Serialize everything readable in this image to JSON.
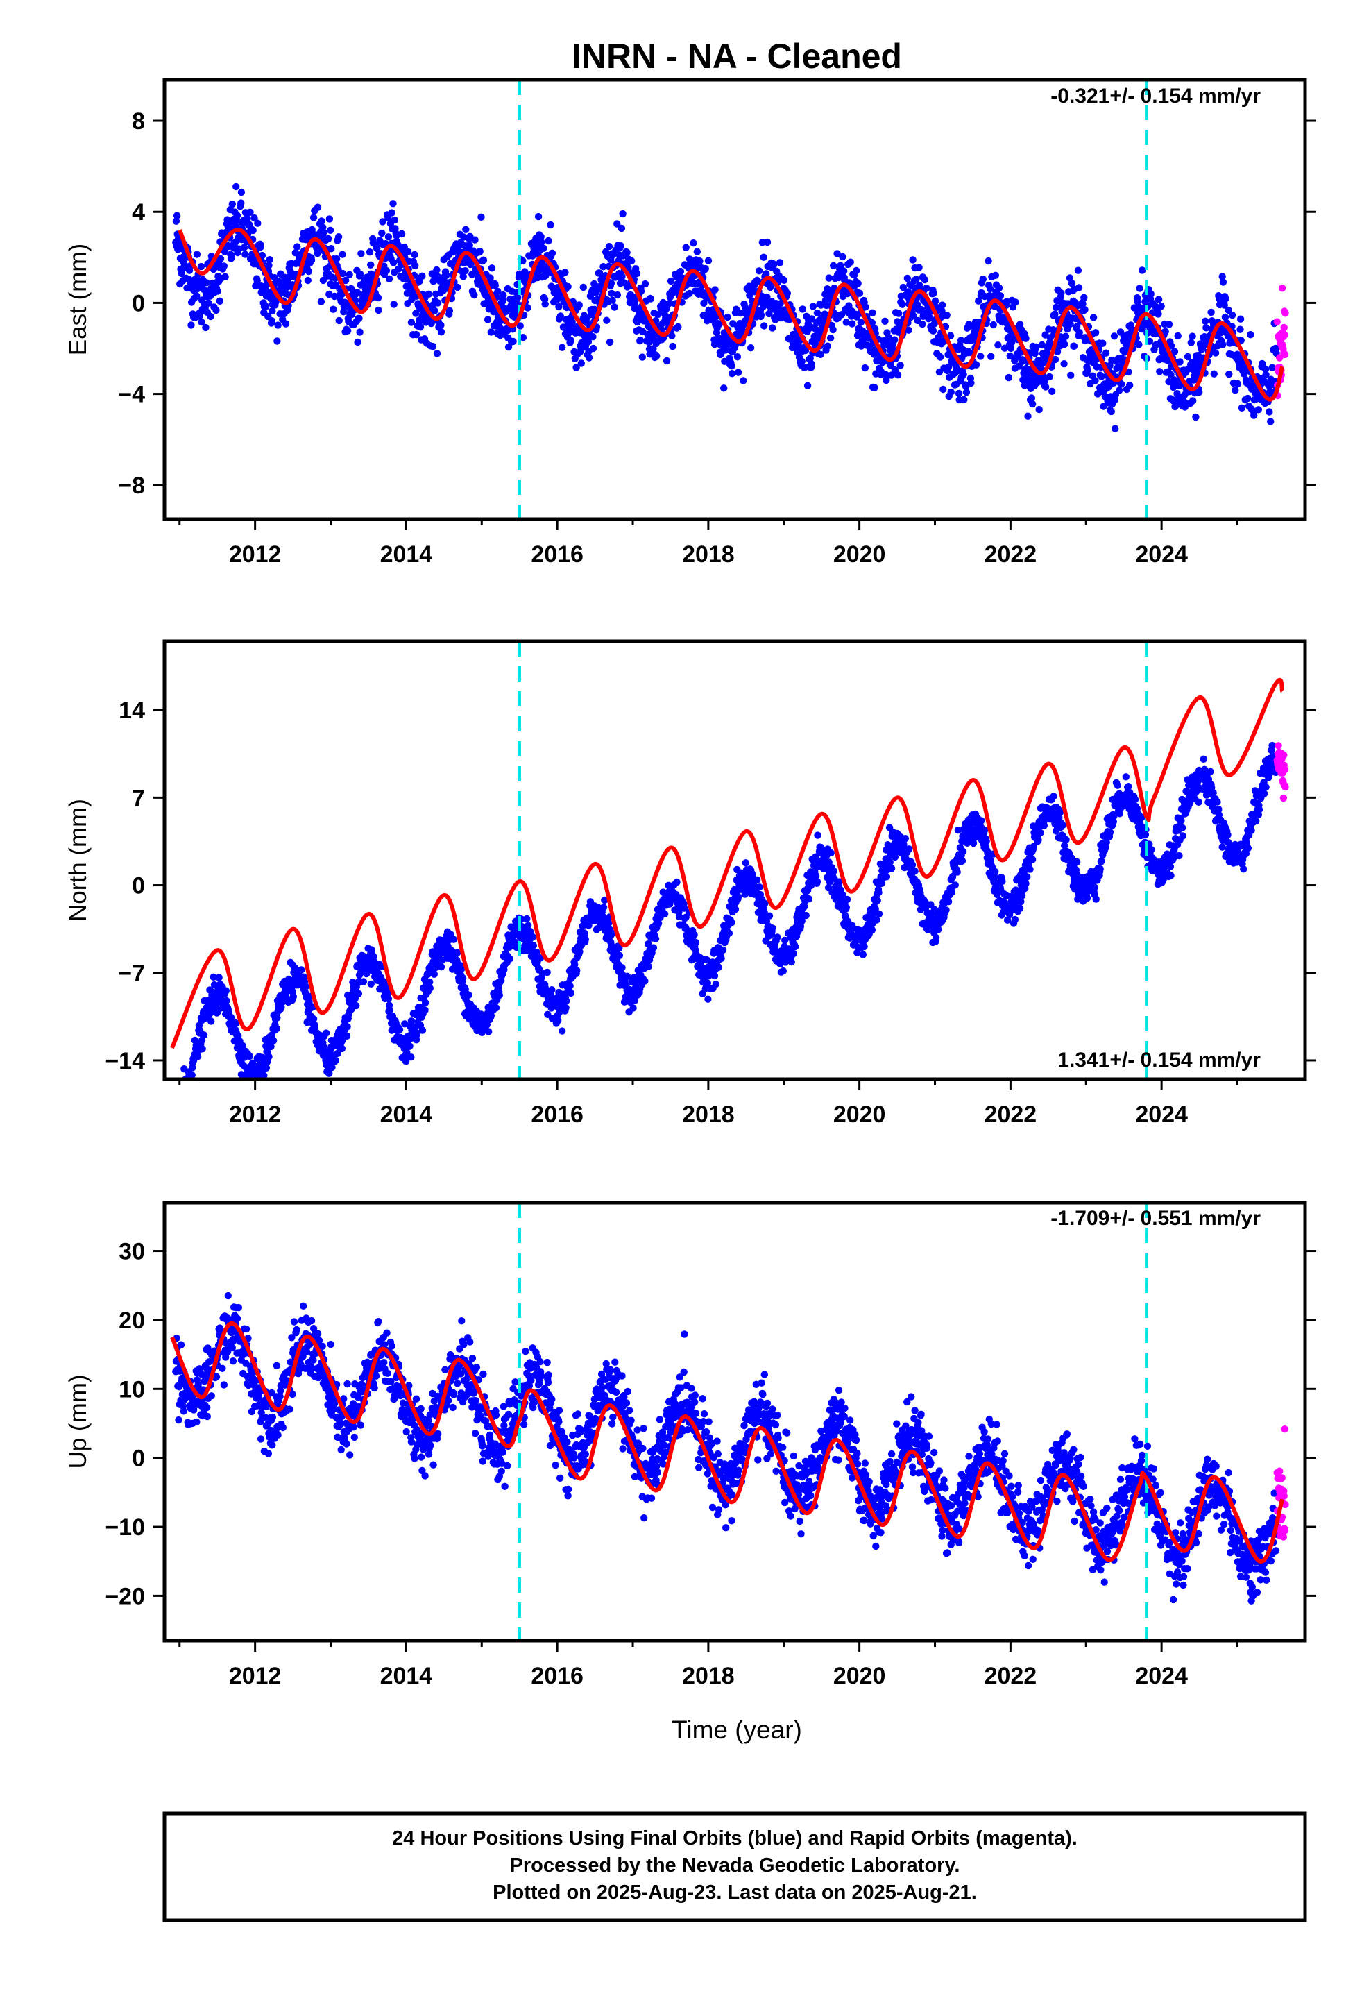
{
  "title": "INRN  - NA - Cleaned",
  "xlabel": "Time (year)",
  "colors": {
    "final_orbits": "#0000ff",
    "rapid_orbits": "#ff00ff",
    "model_fit": "#ff0000",
    "equipment_change": "#00e5e5"
  },
  "footer": {
    "line1": "24 Hour Positions Using Final Orbits (blue) and Rapid Orbits (magenta).",
    "line2": "Processed by the Nevada Geodetic Laboratory.",
    "line3": "Plotted on 2025-Aug-23. Last data on 2025-Aug-21."
  },
  "chart_data": [
    {
      "type": "scatter",
      "component": "east",
      "ylabel": "East (mm)",
      "rate_label": "-0.321+/- 0.154 mm/yr",
      "xlim": [
        2010.8,
        2025.9
      ],
      "ylim": [
        -9.5,
        9.8
      ],
      "xticks": [
        2012,
        2014,
        2016,
        2018,
        2020,
        2022,
        2024
      ],
      "yticks": [
        -8,
        -4,
        0,
        4,
        8
      ],
      "grid": false,
      "equipment_changes": [
        2015.5,
        2023.8
      ],
      "model": {
        "value_at_2011": 2.0,
        "trend_mm_per_yr": -0.321,
        "annual_amplitude": 1.5,
        "annual_peak": 0.8
      },
      "fit_series": [
        {
          "x": 2011.0,
          "y": 3.2
        },
        {
          "x": 2011.3,
          "y": 1.3
        },
        {
          "x": 2011.8,
          "y": 3.2
        },
        {
          "x": 2012.4,
          "y": 0.0
        },
        {
          "x": 2012.8,
          "y": 2.8
        },
        {
          "x": 2013.4,
          "y": -0.4
        },
        {
          "x": 2013.8,
          "y": 2.5
        },
        {
          "x": 2014.4,
          "y": -0.7
        },
        {
          "x": 2014.8,
          "y": 2.2
        },
        {
          "x": 2015.4,
          "y": -1.0
        },
        {
          "x": 2015.8,
          "y": 2.0
        },
        {
          "x": 2016.4,
          "y": -1.2
        },
        {
          "x": 2016.8,
          "y": 1.7
        },
        {
          "x": 2017.4,
          "y": -1.4
        },
        {
          "x": 2017.8,
          "y": 1.4
        },
        {
          "x": 2018.4,
          "y": -1.7
        },
        {
          "x": 2018.8,
          "y": 1.1
        },
        {
          "x": 2019.4,
          "y": -2.1
        },
        {
          "x": 2019.8,
          "y": 0.8
        },
        {
          "x": 2020.4,
          "y": -2.5
        },
        {
          "x": 2020.8,
          "y": 0.5
        },
        {
          "x": 2021.4,
          "y": -2.8
        },
        {
          "x": 2021.8,
          "y": 0.1
        },
        {
          "x": 2022.4,
          "y": -3.1
        },
        {
          "x": 2022.8,
          "y": -0.2
        },
        {
          "x": 2023.4,
          "y": -3.4
        },
        {
          "x": 2023.8,
          "y": -0.5
        },
        {
          "x": 2024.4,
          "y": -3.8
        },
        {
          "x": 2024.8,
          "y": -0.9
        },
        {
          "x": 2025.4,
          "y": -4.2
        },
        {
          "x": 2025.6,
          "y": -2.8
        }
      ]
    },
    {
      "type": "scatter",
      "component": "north",
      "ylabel": "North (mm)",
      "rate_label": "1.341+/- 0.154 mm/yr",
      "xlim": [
        2010.8,
        2025.9
      ],
      "ylim": [
        -15.5,
        19.5
      ],
      "xticks": [
        2012,
        2014,
        2016,
        2018,
        2020,
        2022,
        2024
      ],
      "yticks": [
        -14,
        -7,
        0,
        7,
        14
      ],
      "grid": false,
      "equipment_changes": [
        2015.5,
        2023.8
      ],
      "model": {
        "value_at_2011": -13.0,
        "trend_mm_per_yr": 1.341,
        "annual_amplitude": 3.5,
        "annual_peak": 0.5
      },
      "fit_series": [
        {
          "x": 2010.9,
          "y": -13.0
        },
        {
          "x": 2011.5,
          "y": -5.2
        },
        {
          "x": 2011.9,
          "y": -11.5
        },
        {
          "x": 2012.5,
          "y": -3.5
        },
        {
          "x": 2012.9,
          "y": -10.2
        },
        {
          "x": 2013.5,
          "y": -2.3
        },
        {
          "x": 2013.9,
          "y": -9.0
        },
        {
          "x": 2014.5,
          "y": -0.8
        },
        {
          "x": 2014.9,
          "y": -7.5
        },
        {
          "x": 2015.5,
          "y": 0.3
        },
        {
          "x": 2015.9,
          "y": -6.0
        },
        {
          "x": 2016.5,
          "y": 1.7
        },
        {
          "x": 2016.9,
          "y": -4.8
        },
        {
          "x": 2017.5,
          "y": 3.0
        },
        {
          "x": 2017.9,
          "y": -3.3
        },
        {
          "x": 2018.5,
          "y": 4.3
        },
        {
          "x": 2018.9,
          "y": -1.8
        },
        {
          "x": 2019.5,
          "y": 5.7
        },
        {
          "x": 2019.9,
          "y": -0.5
        },
        {
          "x": 2020.5,
          "y": 7.0
        },
        {
          "x": 2020.9,
          "y": 0.7
        },
        {
          "x": 2021.5,
          "y": 8.4
        },
        {
          "x": 2021.9,
          "y": 2.0
        },
        {
          "x": 2022.5,
          "y": 9.7
        },
        {
          "x": 2022.9,
          "y": 3.4
        },
        {
          "x": 2023.5,
          "y": 11.0
        },
        {
          "x": 2023.8,
          "y": 5.5
        },
        {
          "x": 2023.9,
          "y": 7.0
        },
        {
          "x": 2024.5,
          "y": 15.0
        },
        {
          "x": 2024.9,
          "y": 8.8
        },
        {
          "x": 2025.5,
          "y": 16.0
        },
        {
          "x": 2025.6,
          "y": 15.5
        }
      ]
    },
    {
      "type": "scatter",
      "component": "up",
      "ylabel": "Up (mm)",
      "rate_label": "-1.709+/- 0.551 mm/yr",
      "xlim": [
        2010.8,
        2025.9
      ],
      "ylim": [
        -26.5,
        37
      ],
      "xticks": [
        2012,
        2014,
        2016,
        2018,
        2020,
        2022,
        2024
      ],
      "yticks": [
        -20,
        -10,
        0,
        10,
        20,
        30
      ],
      "grid": false,
      "equipment_changes": [
        2015.5,
        2023.8
      ],
      "model": {
        "value_at_2011": 14.0,
        "trend_mm_per_yr": -1.709,
        "annual_amplitude": 5.5,
        "annual_peak": 0.7
      },
      "fit_series": [
        {
          "x": 2010.9,
          "y": 17.5
        },
        {
          "x": 2011.3,
          "y": 8.8
        },
        {
          "x": 2011.7,
          "y": 19.5
        },
        {
          "x": 2012.3,
          "y": 7.0
        },
        {
          "x": 2012.7,
          "y": 17.6
        },
        {
          "x": 2013.3,
          "y": 5.2
        },
        {
          "x": 2013.7,
          "y": 15.8
        },
        {
          "x": 2014.3,
          "y": 3.5
        },
        {
          "x": 2014.7,
          "y": 14.2
        },
        {
          "x": 2015.3,
          "y": 2.0
        },
        {
          "x": 2015.5,
          "y": 5.5
        },
        {
          "x": 2015.7,
          "y": 9.5
        },
        {
          "x": 2016.3,
          "y": -3.0
        },
        {
          "x": 2016.7,
          "y": 7.6
        },
        {
          "x": 2017.3,
          "y": -4.7
        },
        {
          "x": 2017.7,
          "y": 6.0
        },
        {
          "x": 2018.3,
          "y": -6.4
        },
        {
          "x": 2018.7,
          "y": 4.3
        },
        {
          "x": 2019.3,
          "y": -8.0
        },
        {
          "x": 2019.7,
          "y": 2.6
        },
        {
          "x": 2020.3,
          "y": -9.7
        },
        {
          "x": 2020.7,
          "y": 0.9
        },
        {
          "x": 2021.3,
          "y": -11.4
        },
        {
          "x": 2021.7,
          "y": -0.8
        },
        {
          "x": 2022.3,
          "y": -13.1
        },
        {
          "x": 2022.7,
          "y": -2.5
        },
        {
          "x": 2023.3,
          "y": -14.8
        },
        {
          "x": 2023.7,
          "y": -4.2
        },
        {
          "x": 2023.8,
          "y": -3.0
        },
        {
          "x": 2024.3,
          "y": -13.5
        },
        {
          "x": 2024.7,
          "y": -2.8
        },
        {
          "x": 2025.3,
          "y": -15.0
        },
        {
          "x": 2025.6,
          "y": -6.0
        }
      ]
    }
  ]
}
